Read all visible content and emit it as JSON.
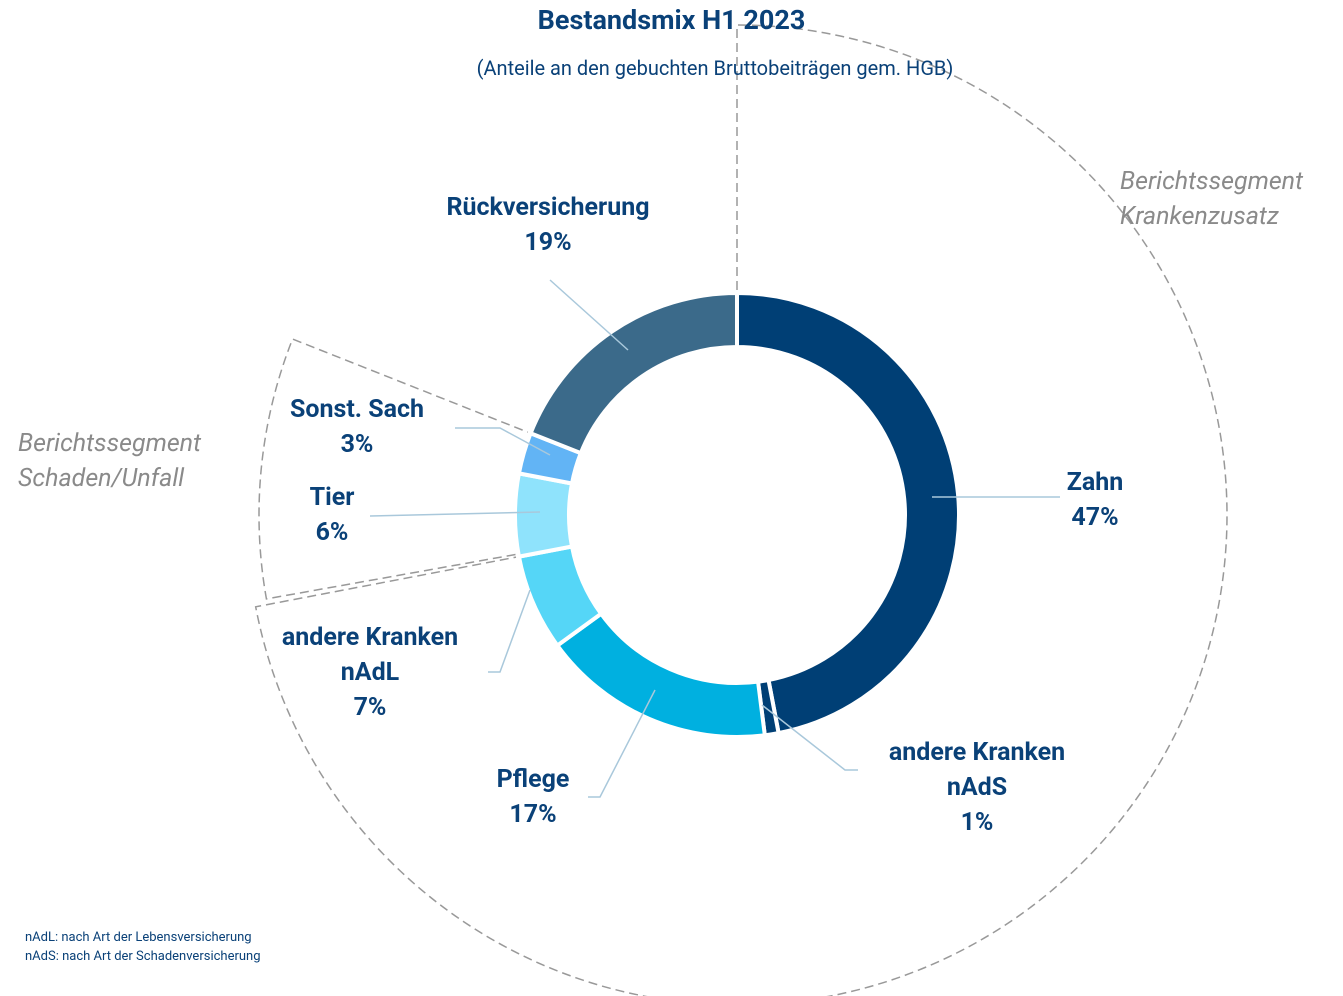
{
  "chart_data": {
    "type": "donut",
    "title": "Bestandsmix H1 2023",
    "subtitle": "(Anteile an den gebuchten Bruttobeiträgen gem. HGB)",
    "categories": [
      "Zahn",
      "andere Kranken nAdS",
      "Pflege",
      "andere Kranken nAdL",
      "Tier",
      "Sonst. Sach",
      "Rückversicherung"
    ],
    "values": [
      47,
      1,
      17,
      7,
      6,
      3,
      19
    ],
    "value_labels": [
      "47%",
      "1%",
      "17%",
      "7%",
      "6%",
      "3%",
      "19%"
    ],
    "colors": [
      "#003f75",
      "#003f75",
      "#00b0e0",
      "#55d6f7",
      "#8fe3fc",
      "#62b4f5",
      "#3b6a8a"
    ],
    "annotations": [
      "Berichtssegment Krankenzusatz",
      "Berichtssegment Schaden/Unfall"
    ],
    "footnotes": [
      "nAdL: nach Art der Lebensversicherung",
      "nAdS: nach Art der Schadenversicherung"
    ]
  }
}
